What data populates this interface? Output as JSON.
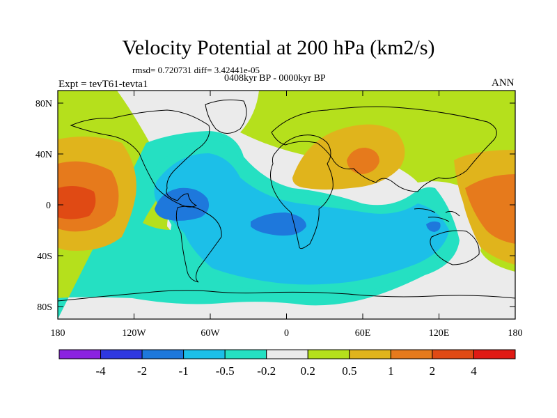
{
  "header": {
    "title": "Velocity Potential at 200 hPa (km2/s)",
    "stats": "rmsd= 0.720731 diff= 3.42441e-05",
    "period": "0408kyr BP - 0000kyr BP",
    "experiment": "Expt = tevT61-tevta1",
    "season": "ANN"
  },
  "map": {
    "projection": "cylindrical equidistant",
    "lon_range": [
      -180,
      180
    ],
    "lat_range": [
      -90,
      90
    ],
    "y_tick_labels": [
      "80N",
      "40N",
      "0",
      "40S",
      "80S"
    ],
    "x_tick_labels": [
      "180",
      "120W",
      "60W",
      "0",
      "60E",
      "120E",
      "180"
    ]
  },
  "colorbar": {
    "tick_labels": [
      "-4",
      "-2",
      "-1",
      "-0.5",
      "-0.2",
      "0.2",
      "0.5",
      "1",
      "2",
      "4"
    ],
    "colors": [
      "#8b23e0",
      "#2f38e0",
      "#1e78dc",
      "#1cbfe8",
      "#25e0c2",
      "#ebebeb",
      "#b5e01c",
      "#e0b41c",
      "#e67a1c",
      "#e04a14",
      "#e01a14"
    ]
  },
  "colors": {
    "c_pos02": "#b5e01c",
    "c_pos05": "#e0b41c",
    "c_pos1": "#e67a1c",
    "c_pos2": "#e04a14",
    "c_neg02": "#ebebeb",
    "c_neg05": "#25e0c2",
    "c_neg1": "#1cbfe8",
    "c_neg2": "#1e78dc"
  }
}
